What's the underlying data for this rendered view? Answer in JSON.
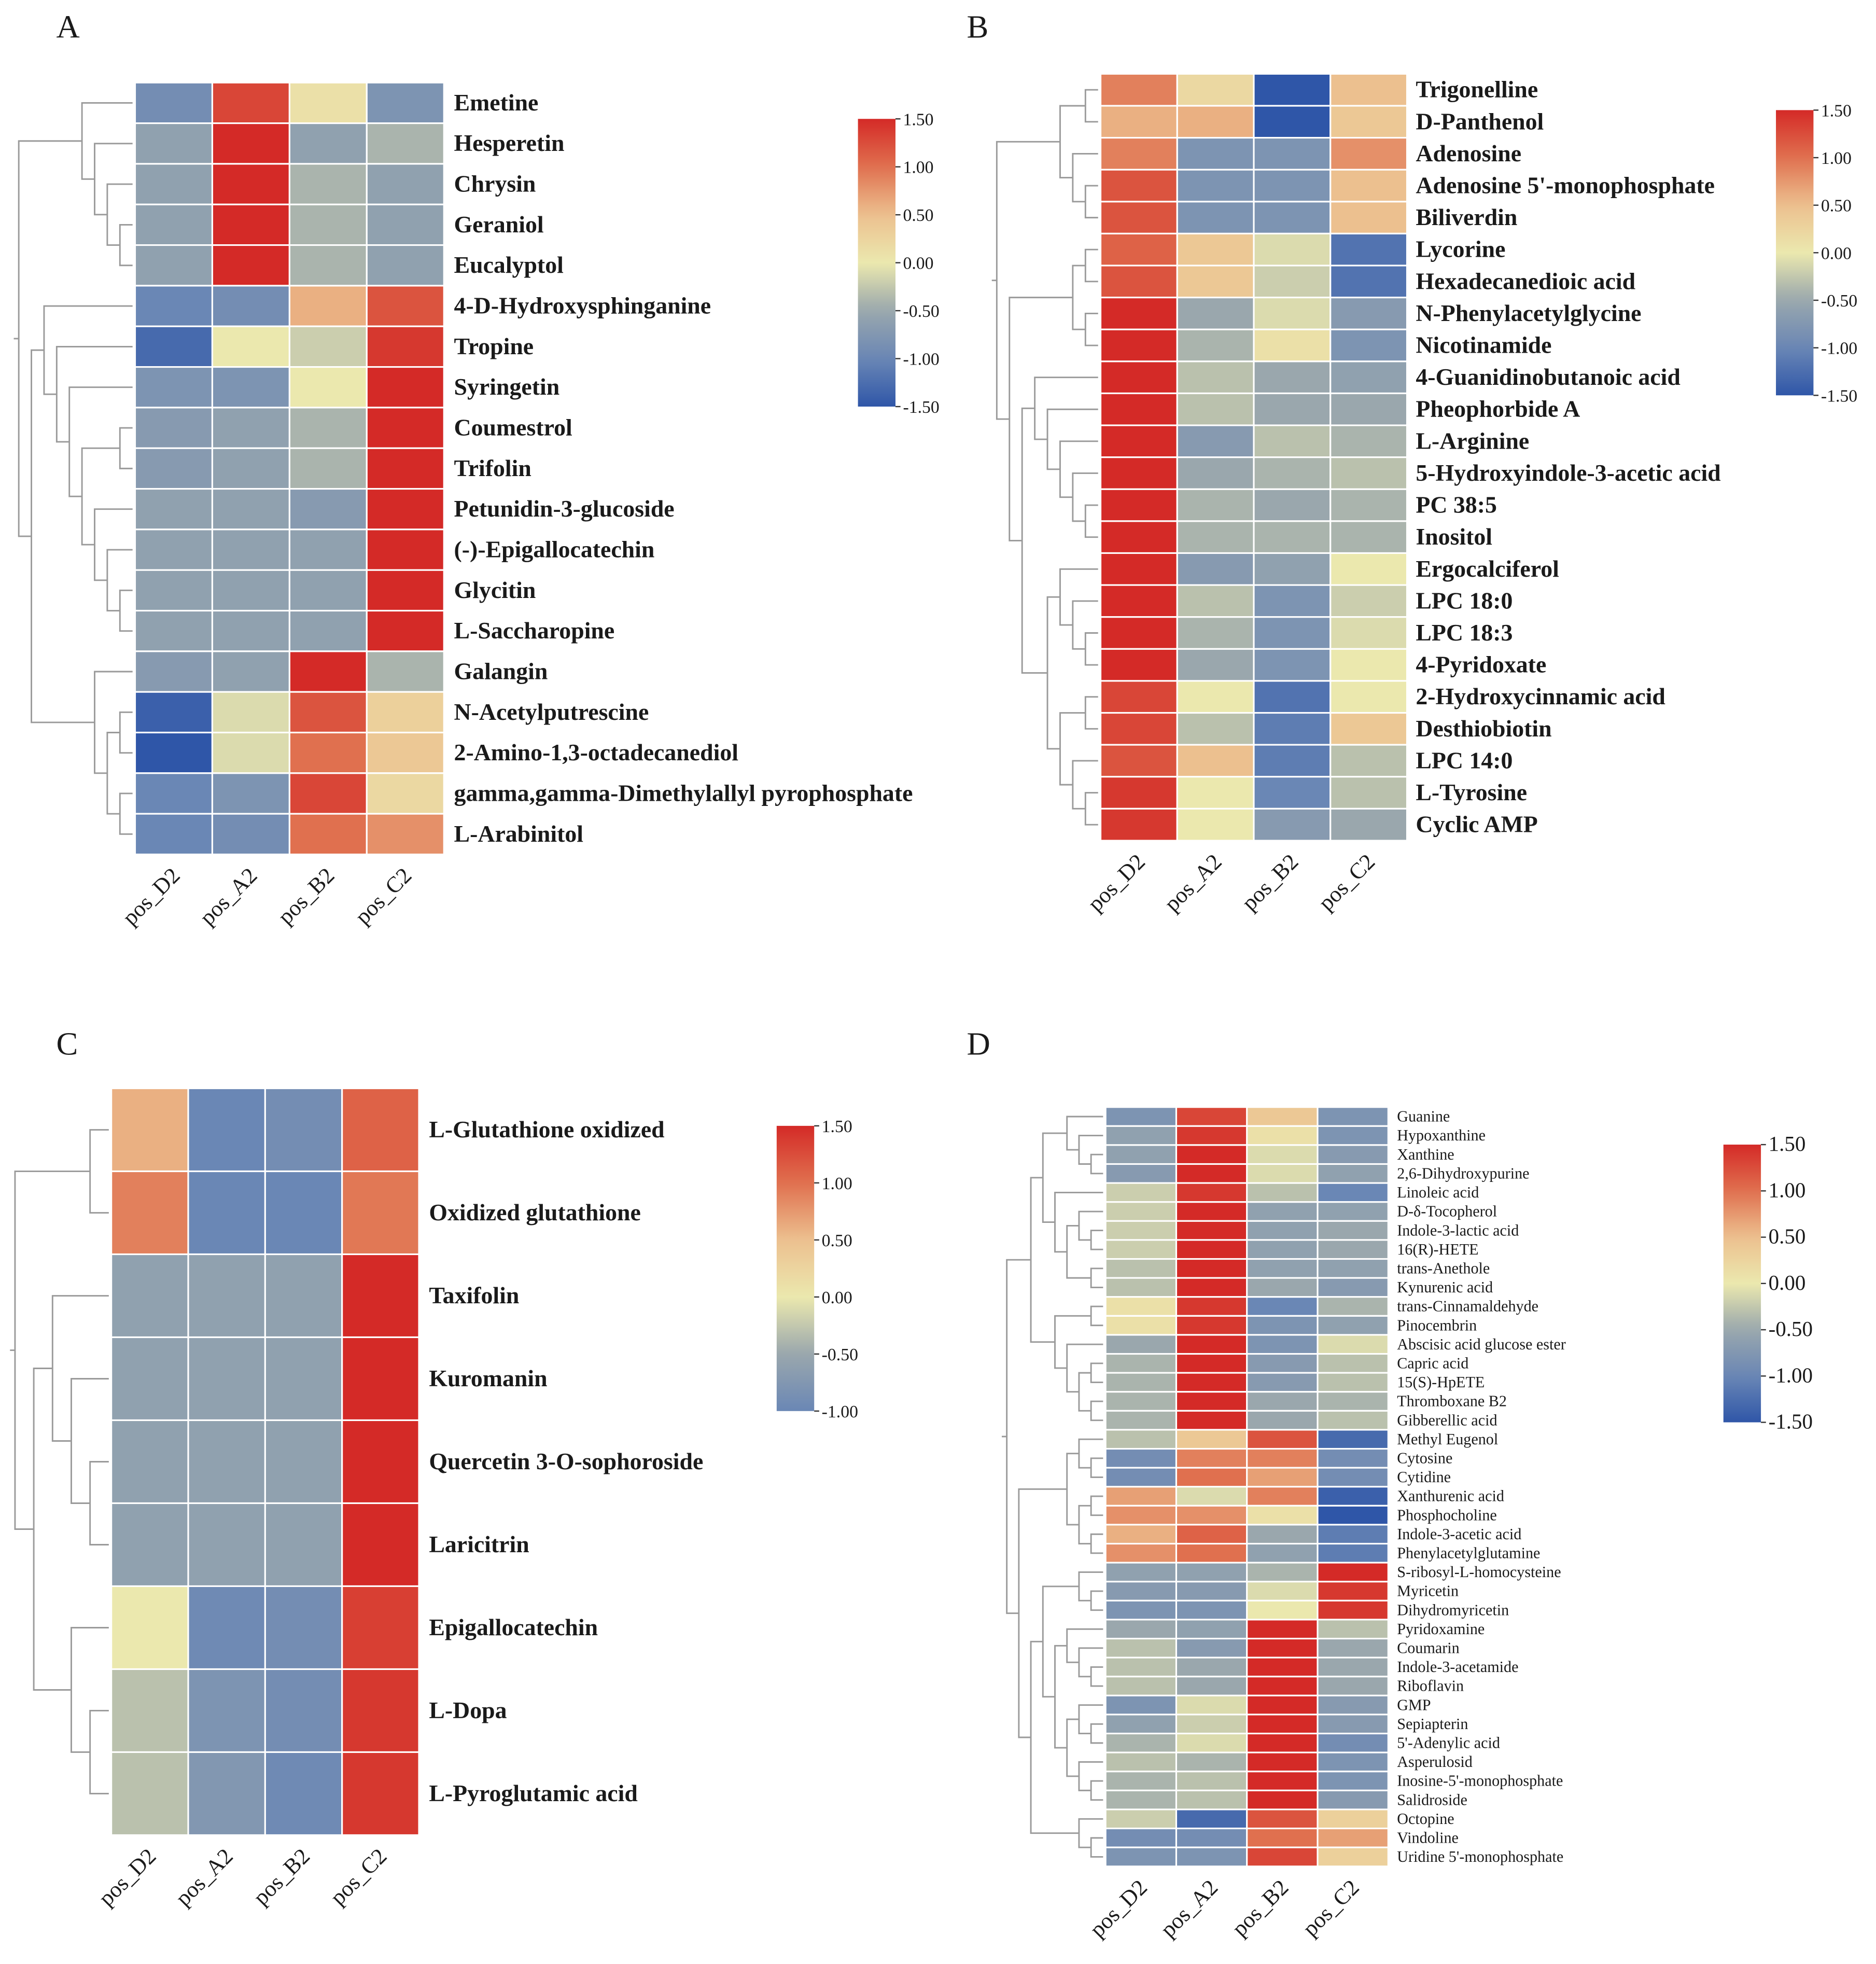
{
  "chart_data": [
    {
      "type": "heatmap",
      "panel": "A",
      "columns": [
        "pos_D2",
        "pos_A2",
        "pos_B2",
        "pos_C2"
      ],
      "rows": [
        "Emetine",
        "Hesperetin",
        "Chrysin",
        "Geraniol",
        "Eucalyptol",
        "4-D-Hydroxysphinganine",
        "Tropine",
        "Syringetin",
        "Coumestrol",
        "Trifolin",
        "Petunidin-3-glucoside",
        "(-)-Epigallocatechin",
        "Glycitin",
        "L-Saccharopine",
        "Galangin",
        "N-Acetylputrescine",
        "2-Amino-1,3-octadecanediol",
        "gamma,gamma-Dimethylallyl pyrophosphate",
        "L-Arabinitol"
      ],
      "values": [
        [
          -0.9,
          1.3,
          0.1,
          -0.8
        ],
        [
          -0.6,
          1.5,
          -0.6,
          -0.4
        ],
        [
          -0.6,
          1.5,
          -0.4,
          -0.6
        ],
        [
          -0.6,
          1.5,
          -0.4,
          -0.6
        ],
        [
          -0.6,
          1.5,
          -0.4,
          -0.6
        ],
        [
          -1.0,
          -0.9,
          0.6,
          1.2
        ],
        [
          -1.3,
          0.0,
          -0.2,
          1.4
        ],
        [
          -0.8,
          -0.8,
          0.0,
          1.5
        ],
        [
          -0.7,
          -0.6,
          -0.4,
          1.5
        ],
        [
          -0.7,
          -0.6,
          -0.4,
          1.5
        ],
        [
          -0.6,
          -0.6,
          -0.7,
          1.5
        ],
        [
          -0.6,
          -0.6,
          -0.6,
          1.5
        ],
        [
          -0.6,
          -0.6,
          -0.6,
          1.5
        ],
        [
          -0.6,
          -0.6,
          -0.6,
          1.5
        ],
        [
          -0.7,
          -0.6,
          1.5,
          -0.4
        ],
        [
          -1.4,
          -0.1,
          1.2,
          0.3
        ],
        [
          -1.5,
          -0.1,
          1.0,
          0.4
        ],
        [
          -1.0,
          -0.8,
          1.3,
          0.2
        ],
        [
          -1.0,
          -0.9,
          1.0,
          0.8
        ]
      ],
      "color_range": [
        -1.5,
        1.5
      ],
      "legend_ticks": [
        "1.50",
        "1.00",
        "0.50",
        "0.00",
        "-0.50",
        "-1.00",
        "-1.50"
      ],
      "legend_placement": "top-right",
      "row_tree": [
        [
          0,
          [
            1,
            [
              2,
              [
                3,
                4
              ]
            ]
          ]
        ],
        [
          [
            5,
            [
              6,
              [
                7,
                [
                  [
                    8,
                    9
                  ],
                  [
                    10,
                    [
                      11,
                      [
                        12,
                        13
                      ]
                    ]
                  ]
                ]
              ]
            ]
          ],
          [
            14,
            [
              [
                15,
                16
              ],
              [
                17,
                18
              ]
            ]
          ]
        ]
      ]
    },
    {
      "type": "heatmap",
      "panel": "B",
      "columns": [
        "pos_D2",
        "pos_A2",
        "pos_B2",
        "pos_C2"
      ],
      "rows": [
        "Trigonelline",
        "D-Panthenol",
        "Adenosine",
        "Adenosine 5'-monophosphate",
        "Biliverdin",
        "Lycorine",
        "Hexadecanedioic acid",
        "N-Phenylacetylglycine",
        "Nicotinamide",
        "4-Guanidinobutanoic acid",
        "Pheophorbide A",
        "L-Arginine",
        "5-Hydroxyindole-3-acetic acid",
        "PC 38:5",
        "Inositol",
        "Ergocalciferol",
        "LPC 18:0",
        "LPC 18:3",
        "4-Pyridoxate",
        "2-Hydroxycinnamic acid",
        "Desthiobiotin",
        "LPC 14:0",
        "L-Tyrosine",
        "Cyclic AMP"
      ],
      "values": [
        [
          0.9,
          0.2,
          -1.5,
          0.5
        ],
        [
          0.6,
          0.6,
          -1.5,
          0.4
        ],
        [
          0.9,
          -0.8,
          -0.8,
          0.8
        ],
        [
          1.2,
          -0.8,
          -0.8,
          0.5
        ],
        [
          1.2,
          -0.8,
          -0.8,
          0.5
        ],
        [
          1.1,
          0.4,
          -0.1,
          -1.2
        ],
        [
          1.2,
          0.4,
          -0.2,
          -1.2
        ],
        [
          1.5,
          -0.5,
          -0.1,
          -0.7
        ],
        [
          1.5,
          -0.4,
          0.1,
          -0.8
        ],
        [
          1.5,
          -0.3,
          -0.5,
          -0.6
        ],
        [
          1.5,
          -0.3,
          -0.5,
          -0.5
        ],
        [
          1.5,
          -0.7,
          -0.3,
          -0.4
        ],
        [
          1.5,
          -0.5,
          -0.4,
          -0.3
        ],
        [
          1.5,
          -0.4,
          -0.5,
          -0.4
        ],
        [
          1.5,
          -0.4,
          -0.4,
          -0.4
        ],
        [
          1.5,
          -0.7,
          -0.6,
          0.0
        ],
        [
          1.5,
          -0.3,
          -0.8,
          -0.2
        ],
        [
          1.5,
          -0.4,
          -0.8,
          -0.1
        ],
        [
          1.5,
          -0.5,
          -0.8,
          0.0
        ],
        [
          1.3,
          0.0,
          -1.2,
          0.0
        ],
        [
          1.3,
          -0.3,
          -1.1,
          0.4
        ],
        [
          1.2,
          0.5,
          -1.1,
          -0.3
        ],
        [
          1.4,
          0.0,
          -1.0,
          -0.3
        ],
        [
          1.4,
          0.0,
          -0.7,
          -0.5
        ]
      ],
      "color_range": [
        -1.5,
        1.5
      ],
      "legend_ticks": [
        "1.50",
        "1.00",
        "0.50",
        "0.00",
        "-0.50",
        "-1.00",
        "-1.50"
      ],
      "legend_placement": "top-right",
      "row_tree": [
        [
          [
            0,
            1
          ],
          [
            2,
            [
              3,
              4
            ]
          ]
        ],
        [
          [
            [
              5,
              6
            ],
            [
              7,
              8
            ]
          ],
          [
            [
              9,
              [
                10,
                [
                  11,
                  [
                    12,
                    [
                      13,
                      14
                    ]
                  ]
                ]
              ]
            ],
            [
              [
                15,
                [
                  16,
                  [
                    17,
                    18
                  ]
                ]
              ],
              [
                [
                  19,
                  20
                ],
                [
                  21,
                  [
                    22,
                    23
                  ]
                ]
              ]
            ]
          ]
        ]
      ]
    },
    {
      "type": "heatmap",
      "panel": "C",
      "columns": [
        "pos_D2",
        "pos_A2",
        "pos_B2",
        "pos_C2"
      ],
      "rows": [
        "L-Glutathione oxidized",
        "Oxidized glutathione",
        "Taxifolin",
        "Kuromanin",
        "Quercetin 3-O-sophoroside",
        "Laricitrin",
        "Epigallocatechin",
        "L-Dopa",
        "L-Pyroglutamic acid"
      ],
      "values": [
        [
          0.6,
          -1.0,
          -0.9,
          1.1
        ],
        [
          0.9,
          -1.0,
          -1.0,
          0.95
        ],
        [
          -0.6,
          -0.6,
          -0.6,
          1.5
        ],
        [
          -0.6,
          -0.6,
          -0.6,
          1.5
        ],
        [
          -0.6,
          -0.6,
          -0.6,
          1.5
        ],
        [
          -0.6,
          -0.6,
          -0.6,
          1.5
        ],
        [
          0.0,
          -0.95,
          -0.9,
          1.35
        ],
        [
          -0.3,
          -0.8,
          -0.9,
          1.4
        ],
        [
          -0.3,
          -0.75,
          -0.95,
          1.4
        ]
      ],
      "color_range": [
        -1.0,
        1.5
      ],
      "legend_ticks": [
        "1.50",
        "1.00",
        "0.50",
        "0.00",
        "-0.50",
        "-1.00"
      ],
      "legend_placement": "top-right",
      "row_tree": [
        [
          0,
          1
        ],
        [
          [
            2,
            [
              3,
              [
                4,
                5
              ]
            ]
          ],
          [
            6,
            [
              7,
              8
            ]
          ]
        ]
      ]
    },
    {
      "type": "heatmap",
      "panel": "D",
      "columns": [
        "pos_D2",
        "pos_A2",
        "pos_B2",
        "pos_C2"
      ],
      "rows": [
        "Guanine",
        "Hypoxanthine",
        "Xanthine",
        "2,6-Dihydroxypurine",
        "Linoleic acid",
        "D-δ-Tocopherol",
        "Indole-3-lactic acid",
        "16(R)-HETE",
        "trans-Anethole",
        "Kynurenic acid",
        "trans-Cinnamaldehyde",
        "Pinocembrin",
        "Abscisic acid glucose ester",
        "Capric acid",
        "15(S)-HpETE",
        "Thromboxane B2",
        "Gibberellic acid",
        "Methyl Eugenol",
        "Cytosine",
        "Cytidine",
        "Xanthurenic acid",
        "Phosphocholine",
        "Indole-3-acetic acid",
        "Phenylacetylglutamine",
        "S-ribosyl-L-homocysteine",
        "Myricetin",
        "Dihydromyricetin",
        "Pyridoxamine",
        "Coumarin",
        "Indole-3-acetamide",
        "Riboflavin",
        "GMP",
        "Sepiapterin",
        "5'-Adenylic acid",
        "Asperulosid",
        "Inosine-5'-monophosphate",
        "Salidroside",
        "Octopine",
        "Vindoline",
        "Uridine 5'-monophosphate"
      ],
      "values": [
        [
          -0.8,
          1.3,
          0.4,
          -0.8
        ],
        [
          -0.6,
          1.4,
          0.1,
          -0.8
        ],
        [
          -0.6,
          1.5,
          -0.1,
          -0.7
        ],
        [
          -0.7,
          1.5,
          -0.1,
          -0.6
        ],
        [
          -0.2,
          1.4,
          -0.3,
          -1.0
        ],
        [
          -0.2,
          1.5,
          -0.6,
          -0.6
        ],
        [
          -0.2,
          1.5,
          -0.6,
          -0.5
        ],
        [
          -0.2,
          1.5,
          -0.6,
          -0.5
        ],
        [
          -0.3,
          1.5,
          -0.6,
          -0.6
        ],
        [
          -0.3,
          1.5,
          -0.5,
          -0.7
        ],
        [
          0.1,
          1.4,
          -1.0,
          -0.4
        ],
        [
          0.1,
          1.4,
          -0.8,
          -0.6
        ],
        [
          -0.5,
          1.5,
          -0.8,
          -0.1
        ],
        [
          -0.4,
          1.5,
          -0.7,
          -0.3
        ],
        [
          -0.4,
          1.5,
          -0.7,
          -0.3
        ],
        [
          -0.4,
          1.5,
          -0.5,
          -0.4
        ],
        [
          -0.4,
          1.5,
          -0.5,
          -0.3
        ],
        [
          -0.3,
          0.4,
          1.2,
          -1.3
        ],
        [
          -0.9,
          0.9,
          0.9,
          -0.9
        ],
        [
          -0.9,
          1.0,
          0.7,
          -0.9
        ],
        [
          0.7,
          -0.1,
          0.9,
          -1.4
        ],
        [
          0.8,
          0.8,
          0.1,
          -1.5
        ],
        [
          0.6,
          1.1,
          -0.5,
          -1.1
        ],
        [
          0.8,
          1.0,
          -0.6,
          -1.1
        ],
        [
          -0.6,
          -0.6,
          -0.4,
          1.5
        ],
        [
          -0.7,
          -0.7,
          -0.1,
          1.4
        ],
        [
          -0.8,
          -0.8,
          0.0,
          1.4
        ],
        [
          -0.5,
          -0.6,
          1.5,
          -0.3
        ],
        [
          -0.3,
          -0.7,
          1.5,
          -0.5
        ],
        [
          -0.3,
          -0.5,
          1.5,
          -0.5
        ],
        [
          -0.3,
          -0.5,
          1.5,
          -0.5
        ],
        [
          -0.8,
          -0.1,
          1.5,
          -0.7
        ],
        [
          -0.6,
          -0.2,
          1.5,
          -0.7
        ],
        [
          -0.4,
          -0.1,
          1.5,
          -0.9
        ],
        [
          -0.3,
          -0.4,
          1.5,
          -0.8
        ],
        [
          -0.4,
          -0.3,
          1.5,
          -0.8
        ],
        [
          -0.4,
          -0.3,
          1.5,
          -0.7
        ],
        [
          -0.2,
          -1.3,
          1.2,
          0.3
        ],
        [
          -0.9,
          -0.9,
          1.0,
          0.7
        ],
        [
          -0.8,
          -0.8,
          1.3,
          0.3
        ]
      ],
      "color_range": [
        -1.5,
        1.5
      ],
      "legend_ticks": [
        "1.50",
        "1.00",
        "0.50",
        "0.00",
        "-0.50",
        "-1.00",
        "-1.50"
      ],
      "legend_placement": "top-right",
      "row_tree": [
        [
          [
            [
              0,
              [
                1,
                [
                  2,
                  3
                ]
              ]
            ],
            [
              4,
              [
                [
                  5,
                  [
                    6,
                    7
                  ]
                ],
                [
                  8,
                  9
                ]
              ]
            ]
          ],
          [
            [
              10,
              11
            ],
            [
              12,
              [
                [
                  13,
                  14
                ],
                [
                  15,
                  16
                ]
              ]
            ]
          ]
        ],
        [
          [
            [
              17,
              [
                18,
                19
              ]
            ],
            [
              [
                20,
                21
              ],
              [
                22,
                23
              ]
            ]
          ],
          [
            [
              [
                24,
                [
                  25,
                  26
                ]
              ],
              [
                [
                  27,
                  [
                    28,
                    [
                      29,
                      30
                    ]
                  ]
                ],
                [
                  [
                    31,
                    [
                      32,
                      33
                    ]
                  ],
                  [
                    34,
                    [
                      35,
                      36
                    ]
                  ]
                ]
              ]
            ],
            [
              37,
              [
                38,
                39
              ]
            ]
          ]
        ]
      ]
    }
  ],
  "colors": {
    "scale": [
      "#2f56a8",
      "#6a87b5",
      "#9aa7ad",
      "#ebe8ae",
      "#ecc08f",
      "#e0704f",
      "#d42a27"
    ],
    "dendrogram": "#9a9a9a"
  }
}
